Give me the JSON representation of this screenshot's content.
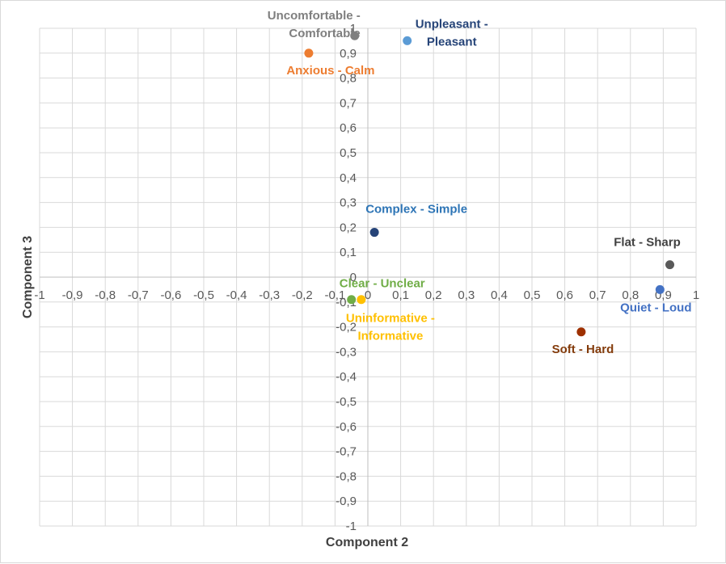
{
  "chart_data": {
    "type": "scatter",
    "title": "",
    "xlabel": "Component 2",
    "ylabel": "Component 3",
    "xlim": [
      -1,
      1
    ],
    "ylim": [
      -1,
      1
    ],
    "major_step": 0.1,
    "grid": true,
    "decimal_separator": ",",
    "x_ticks": [
      "-1",
      "-0,9",
      "-0,8",
      "-0,7",
      "-0,6",
      "-0,5",
      "-0,4",
      "-0,3",
      "-0,2",
      "-0,1",
      "0",
      "0,1",
      "0,2",
      "0,3",
      "0,4",
      "0,5",
      "0,6",
      "0,7",
      "0,8",
      "0,9",
      "1"
    ],
    "y_ticks": [
      "-1",
      "-0,9",
      "-0,8",
      "-0,7",
      "-0,6",
      "-0,5",
      "-0,4",
      "-0,3",
      "-0,2",
      "-0,1",
      "0",
      "0,1",
      "0,2",
      "0,3",
      "0,4",
      "0,5",
      "0,6",
      "0,7",
      "0,8",
      "0,9",
      "1"
    ],
    "points": [
      {
        "name": "uncomfortable-comfortable",
        "label": [
          "Uncomfortable -",
          "Comfortable"
        ],
        "x": -0.04,
        "y": 0.97,
        "color": "#7f7f7f",
        "label_color": "#7f7f7f",
        "label_pos": "left-above"
      },
      {
        "name": "unpleasant-pleasant",
        "label": [
          "Unpleasant -",
          "Pleasant"
        ],
        "x": 0.12,
        "y": 0.95,
        "color": "#5b9bd5",
        "label_color": "#264478",
        "label_pos": "right-above"
      },
      {
        "name": "anxious-calm",
        "label": [
          "Anxious - Calm"
        ],
        "x": -0.18,
        "y": 0.9,
        "color": "#ed7d31",
        "label_color": "#ed7d31",
        "label_pos": "below-right"
      },
      {
        "name": "complex-simple",
        "label": [
          "Complex - Simple"
        ],
        "x": 0.02,
        "y": 0.18,
        "color": "#264478",
        "label_color": "#2e75b6",
        "label_pos": "above-right"
      },
      {
        "name": "flat-sharp",
        "label": [
          "Flat - Sharp"
        ],
        "x": 0.92,
        "y": 0.05,
        "color": "#595959",
        "label_color": "#404040",
        "label_pos": "above-left"
      },
      {
        "name": "quiet-loud",
        "label": [
          "Quiet - Loud"
        ],
        "x": 0.89,
        "y": -0.05,
        "color": "#4472c4",
        "label_color": "#4472c4",
        "label_pos": "below-left"
      },
      {
        "name": "clear-unclear",
        "label": [
          "Clear - Unclear"
        ],
        "x": -0.05,
        "y": -0.09,
        "color": "#70ad47",
        "label_color": "#70ad47",
        "label_pos": "above-right"
      },
      {
        "name": "uninformative-informative",
        "label": [
          "Uninformative -",
          "Informative"
        ],
        "x": -0.02,
        "y": -0.09,
        "color": "#ffc000",
        "label_color": "#ffc000",
        "label_pos": "below-right"
      },
      {
        "name": "soft-hard",
        "label": [
          "Soft - Hard"
        ],
        "x": 0.65,
        "y": -0.22,
        "color": "#9e3000",
        "label_color": "#843c0c",
        "label_pos": "below"
      }
    ]
  }
}
